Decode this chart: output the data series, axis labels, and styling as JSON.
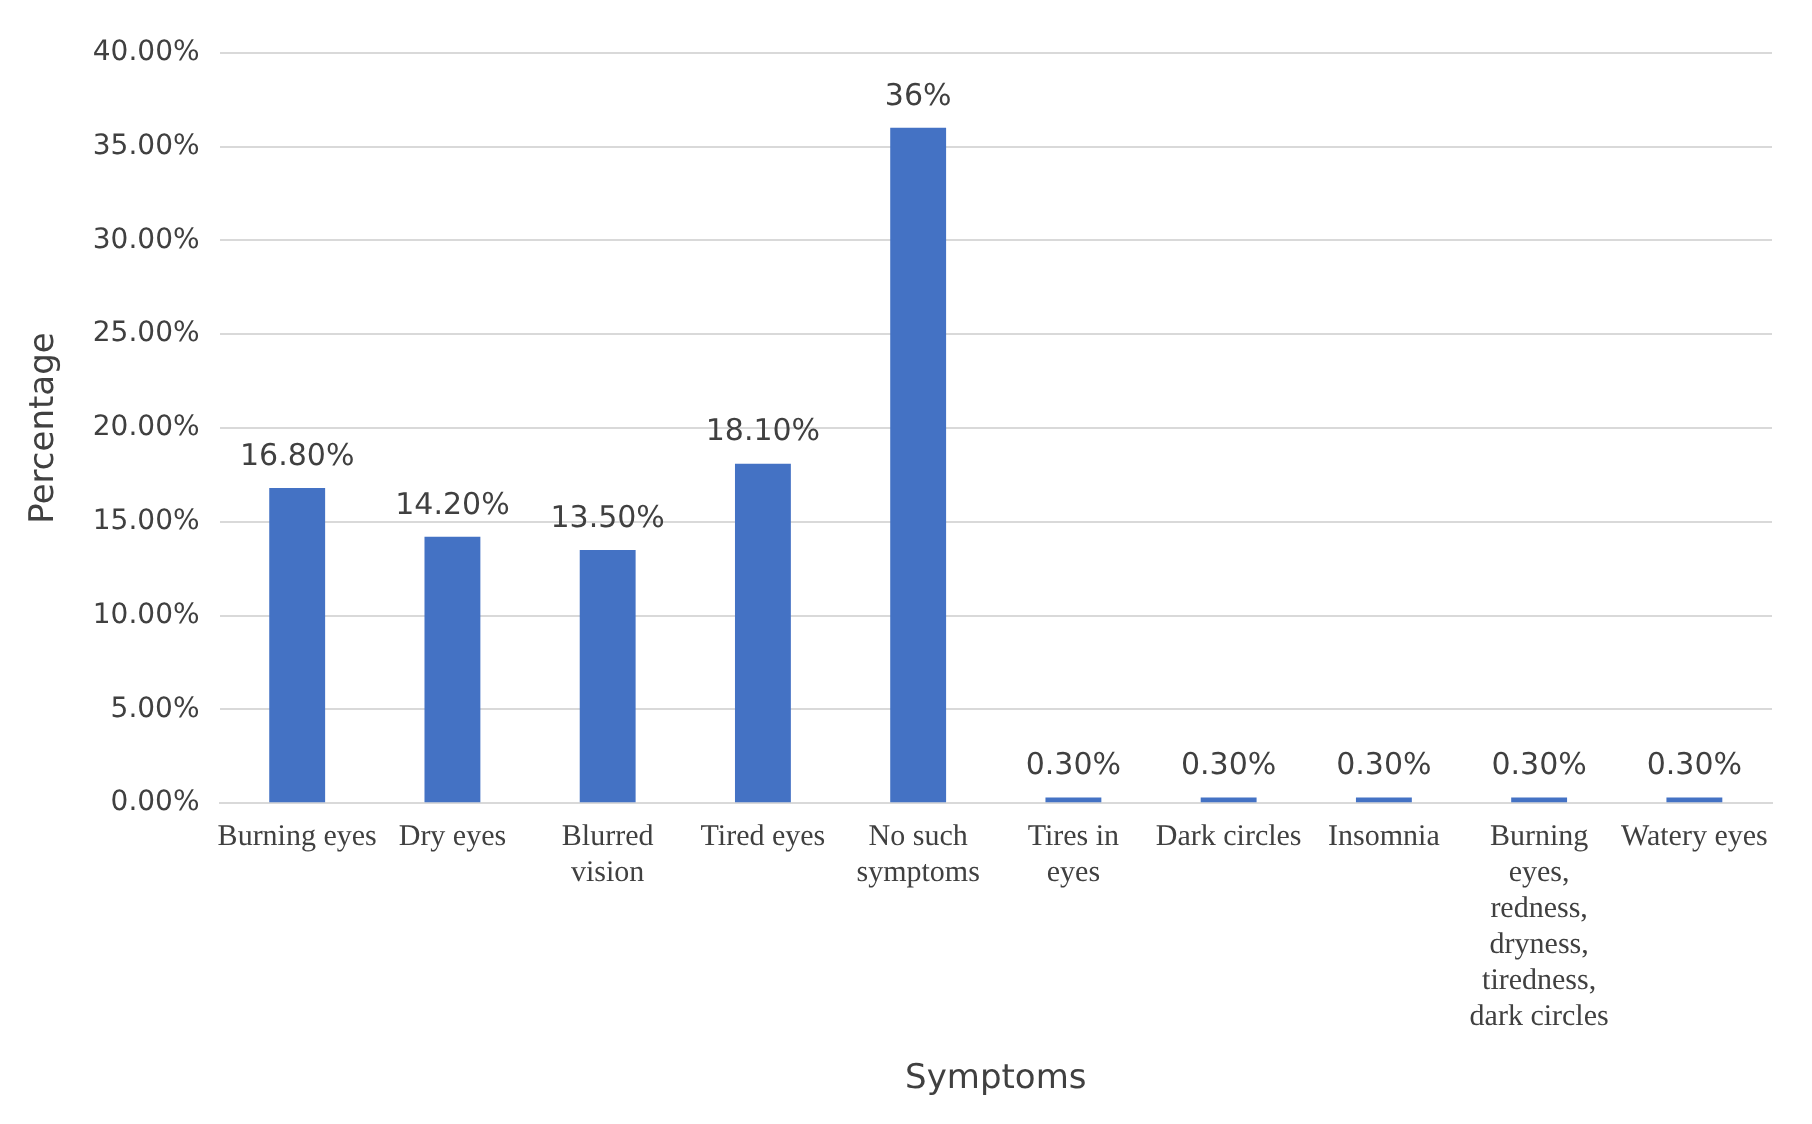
{
  "chart_data": {
    "type": "bar",
    "xlabel": "Symptoms",
    "ylabel": "Percentage",
    "categories": [
      "Burning eyes",
      "Dry eyes",
      "Blurred vision",
      "Tired eyes",
      "No such symptoms",
      "Tires in eyes",
      "Dark circles",
      "Insomnia",
      "Burning eyes, redness, dryness, tiredness, dark circles",
      "Watery eyes"
    ],
    "values": [
      16.8,
      14.2,
      13.5,
      18.1,
      36,
      0.3,
      0.3,
      0.3,
      0.3,
      0.3
    ],
    "value_labels": [
      "16.80%",
      "14.20%",
      "13.50%",
      "18.10%",
      "36%",
      "0.30%",
      "0.30%",
      "0.30%",
      "0.30%",
      "0.30%"
    ],
    "color": "#4472c4",
    "ylim": [
      0,
      40
    ],
    "yticks": [
      {
        "value": 0,
        "label": "0.00%"
      },
      {
        "value": 5,
        "label": "5.00%"
      },
      {
        "value": 10,
        "label": "10.00%"
      },
      {
        "value": 15,
        "label": "15.00%"
      },
      {
        "value": 20,
        "label": "20.00%"
      },
      {
        "value": 25,
        "label": "25.00%"
      },
      {
        "value": 30,
        "label": "30.00%"
      },
      {
        "value": 35,
        "label": "35.00%"
      },
      {
        "value": 40,
        "label": "40.00%"
      }
    ],
    "grid": "y",
    "legend": false
  }
}
